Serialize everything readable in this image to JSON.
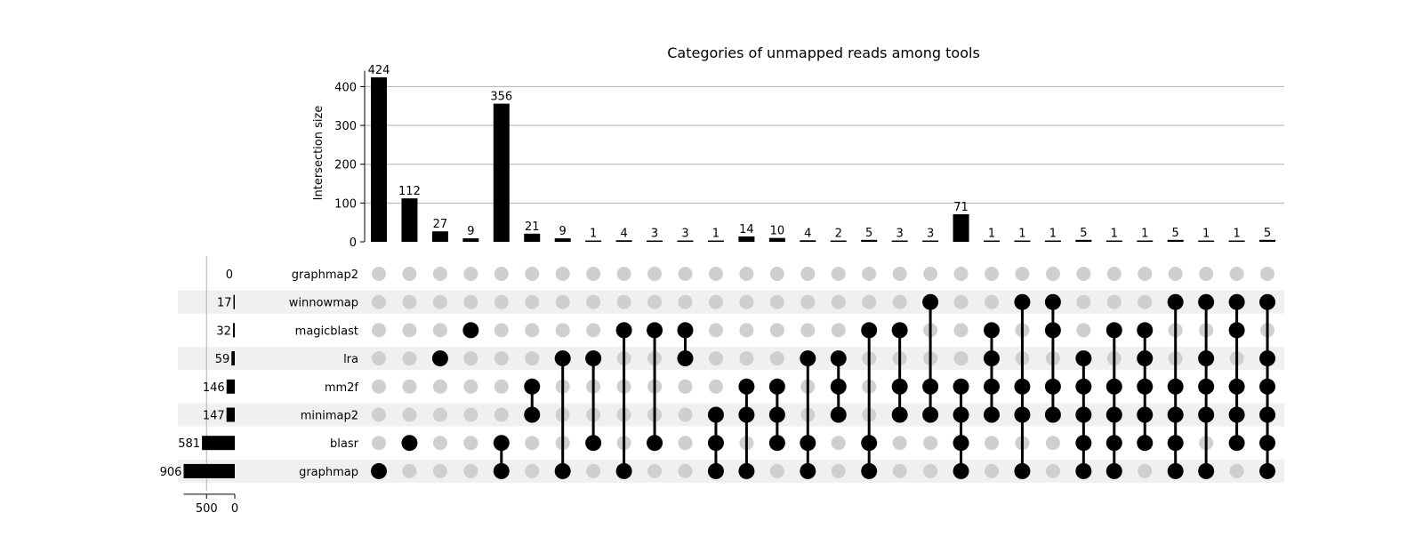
{
  "chart_data": {
    "type": "upset",
    "title": "Categories of unmapped reads among tools",
    "ylabel": "Intersection size",
    "ylim": [
      0,
      450
    ],
    "yticks": [
      0,
      100,
      200,
      300,
      400
    ],
    "set_size_ticks": [
      500,
      0
    ],
    "grid": true,
    "sets": [
      {
        "name": "graphmap2",
        "size": 0
      },
      {
        "name": "winnowmap",
        "size": 17
      },
      {
        "name": "magicblast",
        "size": 32
      },
      {
        "name": "lra",
        "size": 59
      },
      {
        "name": "mm2f",
        "size": 146
      },
      {
        "name": "minimap2",
        "size": 147
      },
      {
        "name": "blasr",
        "size": 581
      },
      {
        "name": "graphmap",
        "size": 906
      }
    ],
    "intersections": [
      {
        "sets": [
          "graphmap"
        ],
        "size": 424
      },
      {
        "sets": [
          "blasr"
        ],
        "size": 112
      },
      {
        "sets": [
          "lra"
        ],
        "size": 27
      },
      {
        "sets": [
          "magicblast"
        ],
        "size": 9
      },
      {
        "sets": [
          "blasr",
          "graphmap"
        ],
        "size": 356
      },
      {
        "sets": [
          "mm2f",
          "minimap2"
        ],
        "size": 21
      },
      {
        "sets": [
          "lra",
          "graphmap"
        ],
        "size": 9
      },
      {
        "sets": [
          "lra",
          "blasr"
        ],
        "size": 1
      },
      {
        "sets": [
          "magicblast",
          "graphmap"
        ],
        "size": 4
      },
      {
        "sets": [
          "magicblast",
          "blasr"
        ],
        "size": 3
      },
      {
        "sets": [
          "magicblast",
          "lra"
        ],
        "size": 3
      },
      {
        "sets": [
          "minimap2",
          "blasr",
          "graphmap"
        ],
        "size": 1
      },
      {
        "sets": [
          "mm2f",
          "minimap2",
          "graphmap"
        ],
        "size": 14
      },
      {
        "sets": [
          "mm2f",
          "minimap2",
          "blasr"
        ],
        "size": 10
      },
      {
        "sets": [
          "lra",
          "blasr",
          "graphmap"
        ],
        "size": 4
      },
      {
        "sets": [
          "lra",
          "mm2f",
          "minimap2"
        ],
        "size": 2
      },
      {
        "sets": [
          "magicblast",
          "blasr",
          "graphmap"
        ],
        "size": 5
      },
      {
        "sets": [
          "magicblast",
          "mm2f",
          "minimap2"
        ],
        "size": 3
      },
      {
        "sets": [
          "winnowmap",
          "mm2f",
          "minimap2"
        ],
        "size": 3
      },
      {
        "sets": [
          "mm2f",
          "minimap2",
          "blasr",
          "graphmap"
        ],
        "size": 71
      },
      {
        "sets": [
          "magicblast",
          "lra",
          "mm2f",
          "minimap2"
        ],
        "size": 1
      },
      {
        "sets": [
          "winnowmap",
          "mm2f",
          "minimap2",
          "graphmap"
        ],
        "size": 1
      },
      {
        "sets": [
          "winnowmap",
          "magicblast",
          "mm2f",
          "minimap2"
        ],
        "size": 1
      },
      {
        "sets": [
          "lra",
          "mm2f",
          "minimap2",
          "blasr",
          "graphmap"
        ],
        "size": 5
      },
      {
        "sets": [
          "magicblast",
          "mm2f",
          "minimap2",
          "blasr",
          "graphmap"
        ],
        "size": 1
      },
      {
        "sets": [
          "magicblast",
          "lra",
          "mm2f",
          "minimap2",
          "blasr"
        ],
        "size": 1
      },
      {
        "sets": [
          "winnowmap",
          "mm2f",
          "minimap2",
          "blasr",
          "graphmap"
        ],
        "size": 5
      },
      {
        "sets": [
          "winnowmap",
          "lra",
          "mm2f",
          "minimap2",
          "graphmap"
        ],
        "size": 1
      },
      {
        "sets": [
          "winnowmap",
          "magicblast",
          "mm2f",
          "minimap2",
          "blasr"
        ],
        "size": 1
      },
      {
        "sets": [
          "winnowmap",
          "lra",
          "mm2f",
          "minimap2",
          "blasr",
          "graphmap"
        ],
        "size": 5
      }
    ],
    "colors": {
      "bar": "#000000",
      "dot_on": "#000000",
      "dot_off": "#cfcfcf",
      "stripe": "#f0f0f0",
      "grid": "#b0b0b0"
    }
  }
}
